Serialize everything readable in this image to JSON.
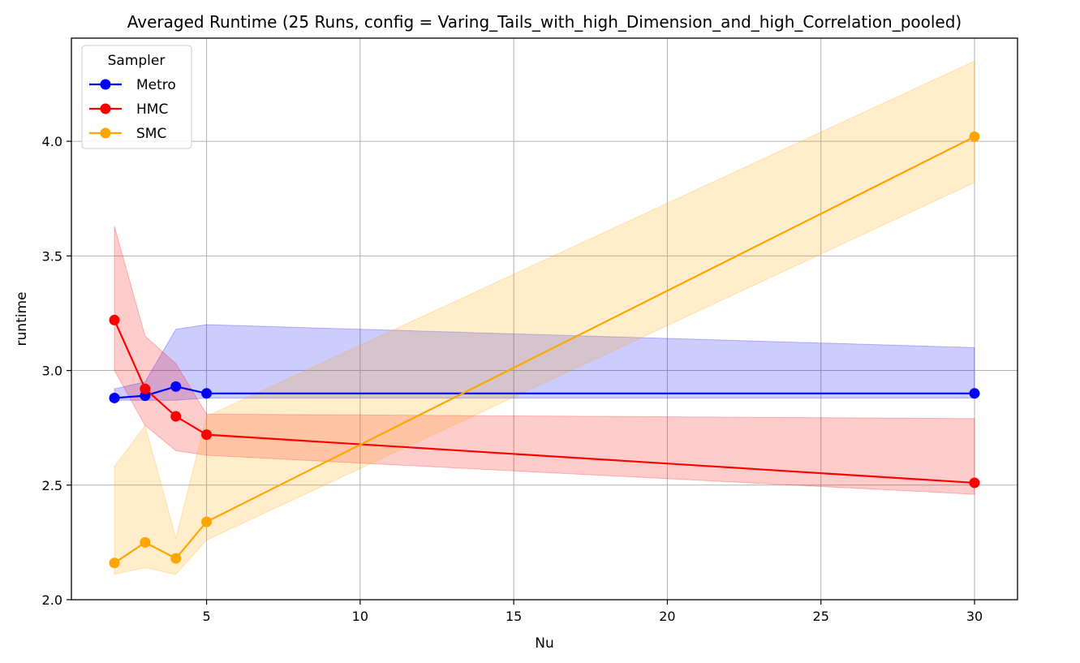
{
  "chart_data": {
    "type": "line",
    "title": "Averaged Runtime (25 Runs, config = Varing_Tails_with_high_Dimension_and_high_Correlation_pooled)",
    "xlabel": "Nu",
    "ylabel": "runtime",
    "xlim": [
      0.6,
      31.4
    ],
    "ylim": [
      2.0,
      4.45
    ],
    "xticks": [
      5,
      10,
      15,
      20,
      25,
      30
    ],
    "yticks": [
      2.0,
      2.5,
      3.0,
      3.5,
      4.0
    ],
    "xtick_labels": [
      "5",
      "10",
      "15",
      "20",
      "25",
      "30"
    ],
    "ytick_labels": [
      "2.0",
      "2.5",
      "3.0",
      "3.5",
      "4.0"
    ],
    "grid": true,
    "legend": {
      "title": "Sampler",
      "position": "top-left"
    },
    "x": [
      2,
      3,
      4,
      5,
      30
    ],
    "series": [
      {
        "name": "Metro",
        "color": "#0000ff",
        "band_color": "#0000ff",
        "values": [
          2.88,
          2.89,
          2.93,
          2.9,
          2.9
        ],
        "lower": [
          2.87,
          2.87,
          2.87,
          2.88,
          2.88
        ],
        "upper": [
          2.92,
          2.95,
          3.18,
          3.2,
          3.1
        ]
      },
      {
        "name": "HMC",
        "color": "#ff0000",
        "band_color": "#ff0000",
        "values": [
          3.22,
          2.92,
          2.8,
          2.72,
          2.51
        ],
        "lower": [
          3.0,
          2.76,
          2.65,
          2.63,
          2.46
        ],
        "upper": [
          3.63,
          3.15,
          3.03,
          2.81,
          2.79
        ]
      },
      {
        "name": "SMC",
        "color": "#ffa500",
        "band_color": "#ffa500",
        "values": [
          2.16,
          2.25,
          2.18,
          2.34,
          4.02
        ],
        "lower": [
          2.11,
          2.14,
          2.11,
          2.26,
          3.82
        ],
        "upper": [
          2.58,
          2.76,
          2.27,
          2.8,
          4.35
        ]
      }
    ]
  }
}
